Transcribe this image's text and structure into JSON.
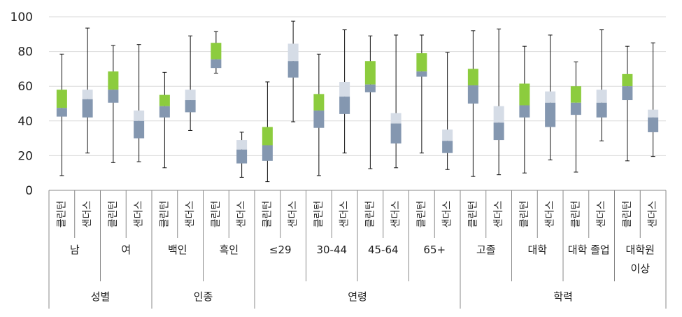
{
  "chart_data": {
    "type": "box",
    "ylim": [
      0,
      100
    ],
    "yticks": [
      0,
      20,
      40,
      60,
      80,
      100
    ],
    "grid": true,
    "colors": {
      "clinton_upper": "#8ccc3e",
      "clinton_lower": "#8497b0",
      "sanders_upper": "#d5dce6",
      "sanders_lower": "#8497b0"
    },
    "categories": [
      "클린턴",
      "샌더스",
      "클린턴",
      "샌더스",
      "클린턴",
      "샌더스",
      "클린턴",
      "샌더스",
      "클린턴",
      "샌더스",
      "클린턴",
      "샌더스",
      "클린턴",
      "샌더스",
      "클린턴",
      "샌더스",
      "클린턴",
      "샌더스",
      "클린턴",
      "샌더스",
      "클린턴",
      "샌더스",
      "클린턴",
      "샌더스"
    ],
    "subgroups": [
      {
        "label": "남",
        "line2": ""
      },
      {
        "label": "여",
        "line2": ""
      },
      {
        "label": "백인",
        "line2": ""
      },
      {
        "label": "흑인",
        "line2": ""
      },
      {
        "label": "≤29",
        "line2": ""
      },
      {
        "label": "30-44",
        "line2": ""
      },
      {
        "label": "45-64",
        "line2": ""
      },
      {
        "label": "65+",
        "line2": ""
      },
      {
        "label": "고졸",
        "line2": ""
      },
      {
        "label": "대학",
        "line2": ""
      },
      {
        "label": "대학 졸업",
        "line2": ""
      },
      {
        "label": "대학원",
        "line2": "이상"
      }
    ],
    "groups": [
      {
        "label": "성별",
        "span": 4
      },
      {
        "label": "인종",
        "span": 4
      },
      {
        "label": "연령",
        "span": 8
      },
      {
        "label": "학력",
        "span": 8
      }
    ],
    "boxes": [
      {
        "min": 8.5,
        "q1": 42.5,
        "median": 47.5,
        "q3": 58,
        "max": 78.5
      },
      {
        "min": 21.5,
        "q1": 42,
        "median": 52.5,
        "q3": 58,
        "max": 93.5
      },
      {
        "min": 16,
        "q1": 50.5,
        "median": 58,
        "q3": 68.5,
        "max": 83.5
      },
      {
        "min": 16.5,
        "q1": 30,
        "median": 40,
        "q3": 46,
        "max": 84
      },
      {
        "min": 13,
        "q1": 42,
        "median": 48.5,
        "q3": 55,
        "max": 68
      },
      {
        "min": 34.5,
        "q1": 45,
        "median": 52,
        "q3": 58,
        "max": 89
      },
      {
        "min": 67.5,
        "q1": 70.5,
        "median": 75.5,
        "q3": 85,
        "max": 91.5
      },
      {
        "min": 7.5,
        "q1": 15.5,
        "median": 23.5,
        "q3": 29,
        "max": 33.5
      },
      {
        "min": 5,
        "q1": 17,
        "median": 26,
        "q3": 36.5,
        "max": 62.5
      },
      {
        "min": 39.5,
        "q1": 65,
        "median": 74.5,
        "q3": 84.5,
        "max": 97.5
      },
      {
        "min": 8.5,
        "q1": 36,
        "median": 46,
        "q3": 55.5,
        "max": 78.5
      },
      {
        "min": 21.5,
        "q1": 44,
        "median": 54,
        "q3": 62.5,
        "max": 92.5
      },
      {
        "min": 12.5,
        "q1": 56.5,
        "median": 61,
        "q3": 74.5,
        "max": 89
      },
      {
        "min": 13,
        "q1": 27,
        "median": 38.5,
        "q3": 44.5,
        "max": 89.5
      },
      {
        "min": 21.5,
        "q1": 65.5,
        "median": 68.5,
        "q3": 79,
        "max": 89.5
      },
      {
        "min": 12,
        "q1": 21.5,
        "median": 28.5,
        "q3": 35,
        "max": 79.5
      },
      {
        "min": 8,
        "q1": 50,
        "median": 60.5,
        "q3": 70,
        "max": 92
      },
      {
        "min": 9,
        "q1": 29,
        "median": 39,
        "q3": 48.5,
        "max": 93
      },
      {
        "min": 10,
        "q1": 42,
        "median": 49,
        "q3": 61.5,
        "max": 83
      },
      {
        "min": 17.5,
        "q1": 36.5,
        "median": 50.5,
        "q3": 57,
        "max": 89.5
      },
      {
        "min": 10.5,
        "q1": 43.5,
        "median": 50.5,
        "q3": 60,
        "max": 74
      },
      {
        "min": 28.5,
        "q1": 42,
        "median": 50.5,
        "q3": 58,
        "max": 92.5
      },
      {
        "min": 17,
        "q1": 52,
        "median": 60,
        "q3": 67,
        "max": 83
      },
      {
        "min": 19.5,
        "q1": 33.5,
        "median": 42,
        "q3": 46.5,
        "max": 85
      }
    ]
  }
}
